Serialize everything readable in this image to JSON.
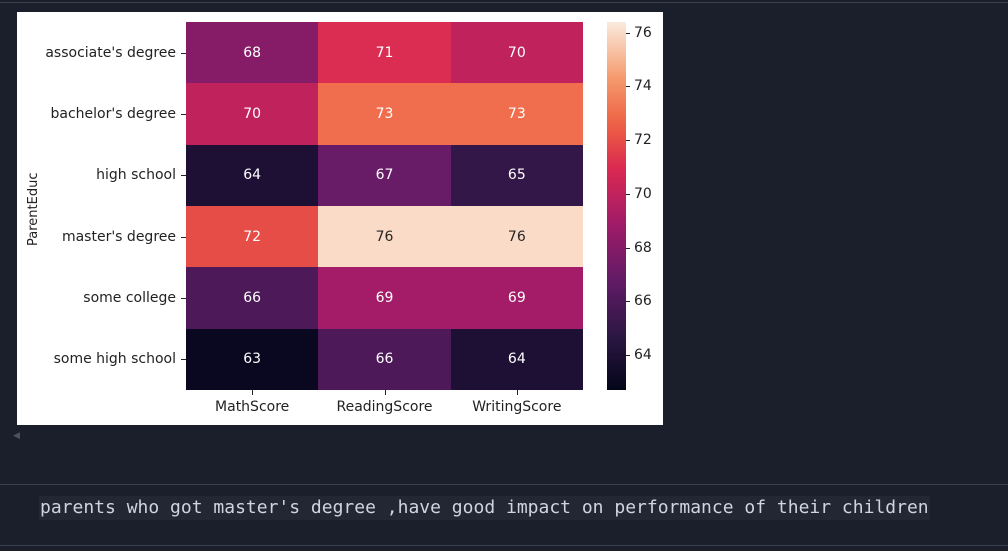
{
  "heatmap": {
    "ylabel": "ParentEduc",
    "rows": [
      "associate's degree",
      "bachelor's degree",
      "high school",
      "master's degree",
      "some college",
      "some high school"
    ],
    "columns": [
      "MathScore",
      "ReadingScore",
      "WritingScore"
    ],
    "colorbar_ticks": [
      "64",
      "66",
      "68",
      "70",
      "72",
      "74",
      "76"
    ]
  },
  "chart_data": {
    "type": "heatmap",
    "title": "",
    "xlabel": "",
    "ylabel": "ParentEduc",
    "x": [
      "MathScore",
      "ReadingScore",
      "WritingScore"
    ],
    "y": [
      "associate's degree",
      "bachelor's degree",
      "high school",
      "master's degree",
      "some college",
      "some high school"
    ],
    "values": [
      [
        68,
        71,
        70
      ],
      [
        70,
        73,
        73
      ],
      [
        64,
        67,
        65
      ],
      [
        72,
        76,
        76
      ],
      [
        66,
        69,
        69
      ],
      [
        63,
        66,
        64
      ]
    ],
    "colorbar_range": [
      62.7,
      76.4
    ],
    "colormap": "rocket"
  },
  "markdown_cell": {
    "text": "parents who got master's degree ,have good impact on performance of their children"
  }
}
